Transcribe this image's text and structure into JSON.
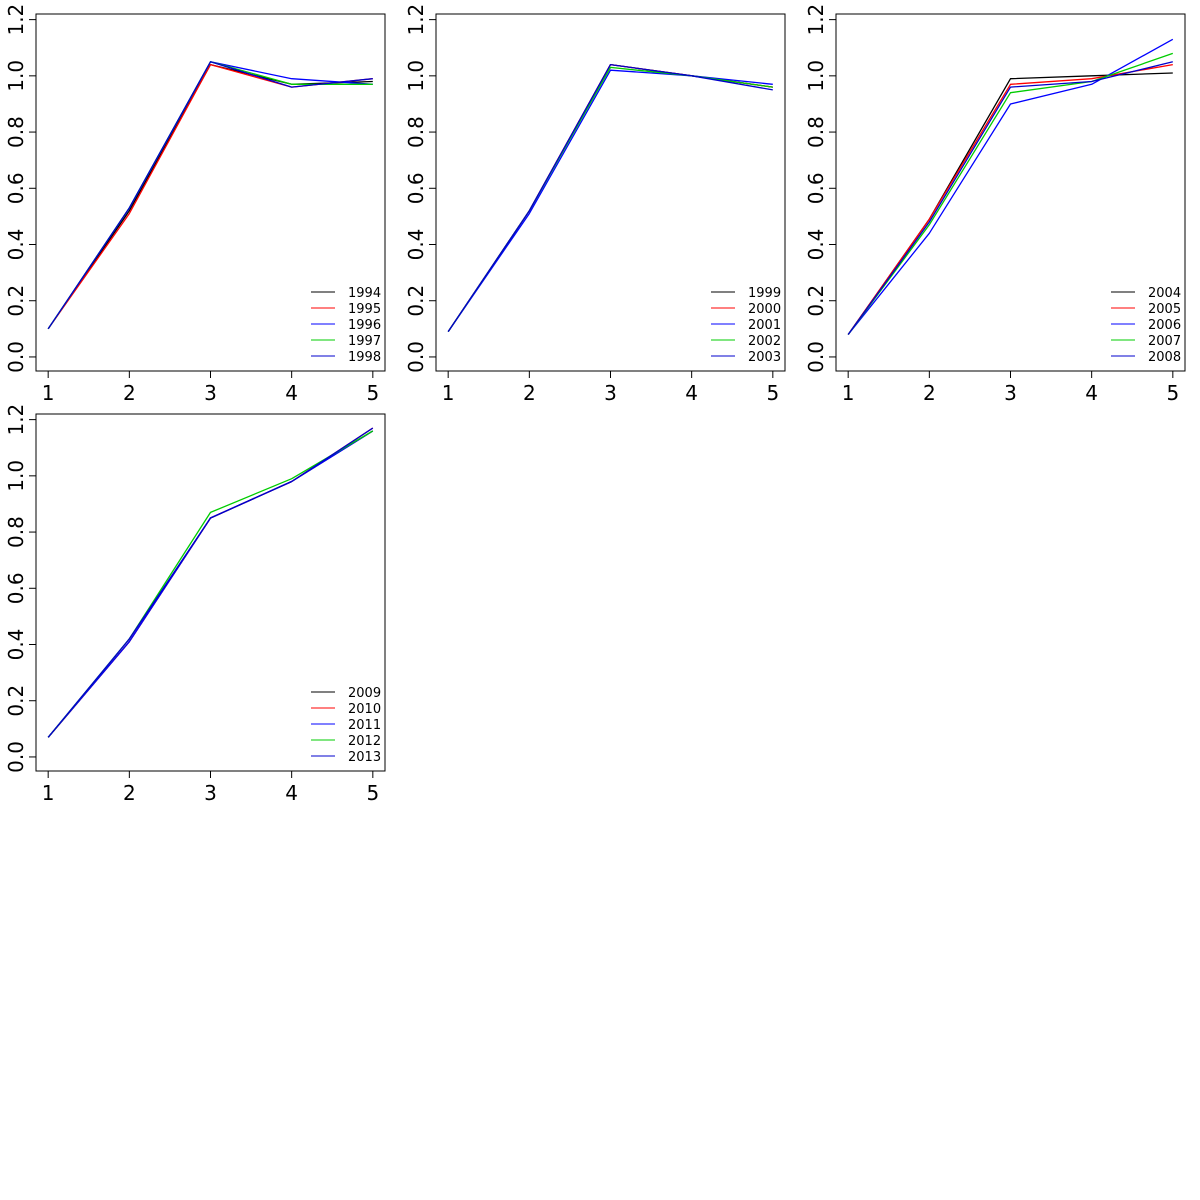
{
  "chart_data": [
    {
      "type": "line",
      "x": [
        1,
        2,
        3,
        4,
        5
      ],
      "xlim": [
        0.85,
        5.15
      ],
      "ylim": [
        -0.05,
        1.22
      ],
      "xticks": [
        1,
        2,
        3,
        4,
        5
      ],
      "yticks": [
        0.0,
        0.2,
        0.4,
        0.6,
        0.8,
        1.0,
        1.2
      ],
      "xtick_labels": [
        "1",
        "2",
        "3",
        "4",
        "5"
      ],
      "ytick_labels": [
        "0.0",
        "0.2",
        "0.4",
        "0.6",
        "0.8",
        "1.0",
        "1.2"
      ],
      "legend_position": "bottom-right",
      "grid": false,
      "series": [
        {
          "name": "1994",
          "color": "#000000",
          "values": [
            0.1,
            0.52,
            1.04,
            0.97,
            0.98
          ]
        },
        {
          "name": "1995",
          "color": "#ff0000",
          "values": [
            0.1,
            0.51,
            1.04,
            0.96,
            0.99
          ]
        },
        {
          "name": "1996",
          "color": "#0000ff",
          "values": [
            0.1,
            0.53,
            1.05,
            0.99,
            0.97
          ]
        },
        {
          "name": "1997",
          "color": "#00cc00",
          "values": [
            0.1,
            0.53,
            1.05,
            0.97,
            0.97
          ]
        },
        {
          "name": "1998",
          "color": "#0000cc",
          "values": [
            0.1,
            0.53,
            1.05,
            0.96,
            0.99
          ]
        }
      ]
    },
    {
      "type": "line",
      "x": [
        1,
        2,
        3,
        4,
        5
      ],
      "xlim": [
        0.85,
        5.15
      ],
      "ylim": [
        -0.05,
        1.22
      ],
      "xticks": [
        1,
        2,
        3,
        4,
        5
      ],
      "yticks": [
        0.0,
        0.2,
        0.4,
        0.6,
        0.8,
        1.0,
        1.2
      ],
      "xtick_labels": [
        "1",
        "2",
        "3",
        "4",
        "5"
      ],
      "ytick_labels": [
        "0.0",
        "0.2",
        "0.4",
        "0.6",
        "0.8",
        "1.0",
        "1.2"
      ],
      "legend_position": "bottom-right",
      "grid": false,
      "series": [
        {
          "name": "1999",
          "color": "#000000",
          "values": [
            0.09,
            0.52,
            1.04,
            1.0,
            0.96
          ]
        },
        {
          "name": "2000",
          "color": "#ff0000",
          "values": [
            0.09,
            0.52,
            1.04,
            1.0,
            0.96
          ]
        },
        {
          "name": "2001",
          "color": "#0000ff",
          "values": [
            0.09,
            0.51,
            1.02,
            1.0,
            0.97
          ]
        },
        {
          "name": "2002",
          "color": "#00cc00",
          "values": [
            0.09,
            0.52,
            1.03,
            1.0,
            0.96
          ]
        },
        {
          "name": "2003",
          "color": "#0000cc",
          "values": [
            0.09,
            0.52,
            1.04,
            1.0,
            0.95
          ]
        }
      ]
    },
    {
      "type": "line",
      "x": [
        1,
        2,
        3,
        4,
        5
      ],
      "xlim": [
        0.85,
        5.15
      ],
      "ylim": [
        -0.05,
        1.22
      ],
      "xticks": [
        1,
        2,
        3,
        4,
        5
      ],
      "yticks": [
        0.0,
        0.2,
        0.4,
        0.6,
        0.8,
        1.0,
        1.2
      ],
      "xtick_labels": [
        "1",
        "2",
        "3",
        "4",
        "5"
      ],
      "ytick_labels": [
        "0.0",
        "0.2",
        "0.4",
        "0.6",
        "0.8",
        "1.0",
        "1.2"
      ],
      "legend_position": "bottom-right",
      "grid": false,
      "series": [
        {
          "name": "2004",
          "color": "#000000",
          "values": [
            0.08,
            0.49,
            0.99,
            1.0,
            1.01
          ]
        },
        {
          "name": "2005",
          "color": "#ff0000",
          "values": [
            0.08,
            0.49,
            0.97,
            0.99,
            1.04
          ]
        },
        {
          "name": "2006",
          "color": "#0000ff",
          "values": [
            0.08,
            0.44,
            0.9,
            0.97,
            1.13
          ]
        },
        {
          "name": "2007",
          "color": "#00cc00",
          "values": [
            0.08,
            0.47,
            0.94,
            0.98,
            1.08
          ]
        },
        {
          "name": "2008",
          "color": "#0000cc",
          "values": [
            0.08,
            0.48,
            0.96,
            0.98,
            1.05
          ]
        }
      ]
    },
    {
      "type": "line",
      "x": [
        1,
        2,
        3,
        4,
        5
      ],
      "xlim": [
        0.85,
        5.15
      ],
      "ylim": [
        -0.05,
        1.22
      ],
      "xticks": [
        1,
        2,
        3,
        4,
        5
      ],
      "yticks": [
        0.0,
        0.2,
        0.4,
        0.6,
        0.8,
        1.0,
        1.2
      ],
      "xtick_labels": [
        "1",
        "2",
        "3",
        "4",
        "5"
      ],
      "ytick_labels": [
        "0.0",
        "0.2",
        "0.4",
        "0.6",
        "0.8",
        "1.0",
        "1.2"
      ],
      "legend_position": "bottom-right",
      "grid": false,
      "series": [
        {
          "name": "2009",
          "color": "#000000",
          "values": [
            0.07,
            0.41,
            0.85,
            0.98,
            1.16
          ]
        },
        {
          "name": "2010",
          "color": "#ff0000",
          "values": [
            0.07,
            0.41,
            0.85,
            0.98,
            1.17
          ]
        },
        {
          "name": "2011",
          "color": "#0000ff",
          "values": [
            0.07,
            0.41,
            0.85,
            0.98,
            1.16
          ]
        },
        {
          "name": "2012",
          "color": "#00cc00",
          "values": [
            0.07,
            0.42,
            0.87,
            0.99,
            1.16
          ]
        },
        {
          "name": "2013",
          "color": "#0000cc",
          "values": [
            0.07,
            0.42,
            0.85,
            0.98,
            1.17
          ]
        }
      ]
    }
  ]
}
